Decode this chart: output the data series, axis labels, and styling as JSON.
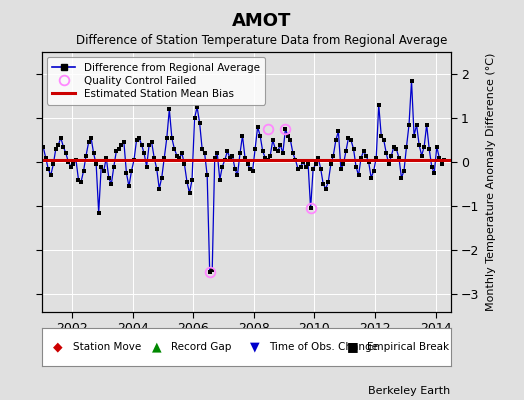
{
  "title": "AMOT",
  "subtitle": "Difference of Station Temperature Data from Regional Average",
  "ylabel": "Monthly Temperature Anomaly Difference (°C)",
  "xlabel_years": [
    2002,
    2004,
    2006,
    2008,
    2010,
    2012,
    2014
  ],
  "xlim": [
    2001.0,
    2014.5
  ],
  "ylim": [
    -3.4,
    2.5
  ],
  "yticks": [
    -3,
    -2,
    -1,
    0,
    1,
    2
  ],
  "mean_bias": 0.05,
  "background_color": "#e0e0e0",
  "plot_bg_color": "#e0e0e0",
  "grid_color": "#ffffff",
  "line_color": "#0000cc",
  "dot_color": "#000000",
  "bias_color": "#cc0000",
  "qc_color": "#ff88ff",
  "berkeley_earth_text": "Berkeley Earth",
  "time_series": [
    [
      2001.042,
      0.35
    ],
    [
      2001.125,
      0.1
    ],
    [
      2001.208,
      -0.15
    ],
    [
      2001.292,
      -0.3
    ],
    [
      2001.375,
      -0.05
    ],
    [
      2001.458,
      0.3
    ],
    [
      2001.542,
      0.4
    ],
    [
      2001.625,
      0.55
    ],
    [
      2001.708,
      0.35
    ],
    [
      2001.792,
      0.2
    ],
    [
      2001.875,
      0.0
    ],
    [
      2001.958,
      -0.1
    ],
    [
      2002.042,
      -0.05
    ],
    [
      2002.125,
      0.05
    ],
    [
      2002.208,
      -0.4
    ],
    [
      2002.292,
      -0.45
    ],
    [
      2002.375,
      -0.2
    ],
    [
      2002.458,
      0.15
    ],
    [
      2002.542,
      0.45
    ],
    [
      2002.625,
      0.55
    ],
    [
      2002.708,
      0.2
    ],
    [
      2002.792,
      -0.05
    ],
    [
      2002.875,
      -1.15
    ],
    [
      2002.958,
      -0.1
    ],
    [
      2003.042,
      -0.2
    ],
    [
      2003.125,
      0.1
    ],
    [
      2003.208,
      -0.35
    ],
    [
      2003.292,
      -0.5
    ],
    [
      2003.375,
      -0.1
    ],
    [
      2003.458,
      0.25
    ],
    [
      2003.542,
      0.3
    ],
    [
      2003.625,
      0.4
    ],
    [
      2003.708,
      0.45
    ],
    [
      2003.792,
      -0.25
    ],
    [
      2003.875,
      -0.55
    ],
    [
      2003.958,
      -0.2
    ],
    [
      2004.042,
      0.05
    ],
    [
      2004.125,
      0.5
    ],
    [
      2004.208,
      0.55
    ],
    [
      2004.292,
      0.4
    ],
    [
      2004.375,
      0.2
    ],
    [
      2004.458,
      -0.1
    ],
    [
      2004.542,
      0.4
    ],
    [
      2004.625,
      0.45
    ],
    [
      2004.708,
      0.1
    ],
    [
      2004.792,
      -0.15
    ],
    [
      2004.875,
      -0.6
    ],
    [
      2004.958,
      -0.35
    ],
    [
      2005.042,
      0.1
    ],
    [
      2005.125,
      0.55
    ],
    [
      2005.208,
      1.2
    ],
    [
      2005.292,
      0.55
    ],
    [
      2005.375,
      0.3
    ],
    [
      2005.458,
      0.15
    ],
    [
      2005.542,
      0.1
    ],
    [
      2005.625,
      0.2
    ],
    [
      2005.708,
      -0.05
    ],
    [
      2005.792,
      -0.45
    ],
    [
      2005.875,
      -0.7
    ],
    [
      2005.958,
      -0.4
    ],
    [
      2006.042,
      1.0
    ],
    [
      2006.125,
      1.25
    ],
    [
      2006.208,
      0.9
    ],
    [
      2006.292,
      0.3
    ],
    [
      2006.375,
      0.2
    ],
    [
      2006.458,
      -0.3
    ],
    [
      2006.542,
      -2.5
    ],
    [
      2006.625,
      -2.45
    ],
    [
      2006.708,
      0.1
    ],
    [
      2006.792,
      0.2
    ],
    [
      2006.875,
      -0.4
    ],
    [
      2006.958,
      -0.1
    ],
    [
      2007.042,
      0.05
    ],
    [
      2007.125,
      0.25
    ],
    [
      2007.208,
      0.1
    ],
    [
      2007.292,
      0.15
    ],
    [
      2007.375,
      -0.15
    ],
    [
      2007.458,
      -0.3
    ],
    [
      2007.542,
      0.2
    ],
    [
      2007.625,
      0.6
    ],
    [
      2007.708,
      0.1
    ],
    [
      2007.792,
      -0.05
    ],
    [
      2007.875,
      -0.15
    ],
    [
      2007.958,
      -0.2
    ],
    [
      2008.042,
      0.3
    ],
    [
      2008.125,
      0.8
    ],
    [
      2008.208,
      0.6
    ],
    [
      2008.292,
      0.25
    ],
    [
      2008.375,
      0.1
    ],
    [
      2008.458,
      0.05
    ],
    [
      2008.542,
      0.15
    ],
    [
      2008.625,
      0.5
    ],
    [
      2008.708,
      0.3
    ],
    [
      2008.792,
      0.25
    ],
    [
      2008.875,
      0.4
    ],
    [
      2008.958,
      0.2
    ],
    [
      2009.042,
      0.75
    ],
    [
      2009.125,
      0.6
    ],
    [
      2009.208,
      0.5
    ],
    [
      2009.292,
      0.2
    ],
    [
      2009.375,
      0.05
    ],
    [
      2009.458,
      -0.15
    ],
    [
      2009.542,
      -0.1
    ],
    [
      2009.625,
      0.0
    ],
    [
      2009.708,
      -0.1
    ],
    [
      2009.792,
      -0.05
    ],
    [
      2009.875,
      -1.05
    ],
    [
      2009.958,
      -0.15
    ],
    [
      2010.042,
      -0.05
    ],
    [
      2010.125,
      0.1
    ],
    [
      2010.208,
      -0.15
    ],
    [
      2010.292,
      -0.5
    ],
    [
      2010.375,
      -0.6
    ],
    [
      2010.458,
      -0.45
    ],
    [
      2010.542,
      -0.05
    ],
    [
      2010.625,
      0.15
    ],
    [
      2010.708,
      0.5
    ],
    [
      2010.792,
      0.7
    ],
    [
      2010.875,
      -0.15
    ],
    [
      2010.958,
      -0.05
    ],
    [
      2011.042,
      0.25
    ],
    [
      2011.125,
      0.55
    ],
    [
      2011.208,
      0.5
    ],
    [
      2011.292,
      0.3
    ],
    [
      2011.375,
      -0.1
    ],
    [
      2011.458,
      -0.3
    ],
    [
      2011.542,
      0.1
    ],
    [
      2011.625,
      0.25
    ],
    [
      2011.708,
      0.15
    ],
    [
      2011.792,
      0.0
    ],
    [
      2011.875,
      -0.35
    ],
    [
      2011.958,
      -0.2
    ],
    [
      2012.042,
      0.1
    ],
    [
      2012.125,
      1.3
    ],
    [
      2012.208,
      0.6
    ],
    [
      2012.292,
      0.5
    ],
    [
      2012.375,
      0.2
    ],
    [
      2012.458,
      -0.05
    ],
    [
      2012.542,
      0.15
    ],
    [
      2012.625,
      0.35
    ],
    [
      2012.708,
      0.3
    ],
    [
      2012.792,
      0.1
    ],
    [
      2012.875,
      -0.35
    ],
    [
      2012.958,
      -0.2
    ],
    [
      2013.042,
      0.35
    ],
    [
      2013.125,
      0.85
    ],
    [
      2013.208,
      1.85
    ],
    [
      2013.292,
      0.6
    ],
    [
      2013.375,
      0.85
    ],
    [
      2013.458,
      0.4
    ],
    [
      2013.542,
      0.15
    ],
    [
      2013.625,
      0.35
    ],
    [
      2013.708,
      0.85
    ],
    [
      2013.792,
      0.3
    ],
    [
      2013.875,
      -0.1
    ],
    [
      2013.958,
      -0.25
    ],
    [
      2014.042,
      0.35
    ],
    [
      2014.125,
      0.1
    ],
    [
      2014.208,
      -0.05
    ],
    [
      2014.292,
      0.05
    ]
  ],
  "qc_failed_points": [
    [
      2006.542,
      -2.5
    ],
    [
      2008.458,
      0.75
    ],
    [
      2009.042,
      0.75
    ],
    [
      2009.875,
      -1.05
    ]
  ]
}
